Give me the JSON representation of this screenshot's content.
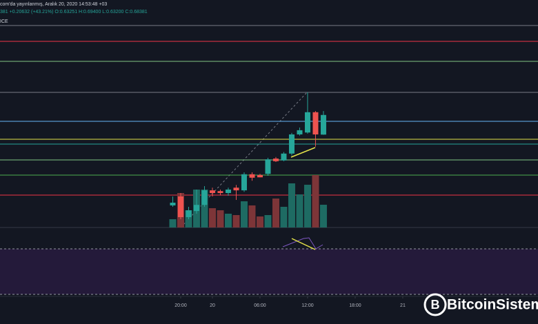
{
  "header": {
    "published": "com'da yayınlanmış, Aralık 20, 2020 14:53:48 +03",
    "quote": "381 +0.20632 (+43.21%) O:0.63251 H:0.69400 L:0.63200 C:0.68381",
    "source": "ICE"
  },
  "watermark": "BitcoinSistemi",
  "chart_data": {
    "type": "candlestick",
    "x": [
      "2020-12-19 19:00",
      "2020-12-19 20:00",
      "2020-12-19 21:00",
      "2020-12-19 22:00",
      "2020-12-19 23:00",
      "2020-12-20 00:00",
      "2020-12-20 01:00",
      "2020-12-20 02:00",
      "2020-12-20 03:00",
      "2020-12-20 04:00",
      "2020-12-20 05:00",
      "2020-12-20 06:00",
      "2020-12-20 07:00",
      "2020-12-20 08:00",
      "2020-12-20 09:00",
      "2020-12-20 10:00",
      "2020-12-20 11:00",
      "2020-12-20 12:00",
      "2020-12-20 13:00",
      "2020-12-20 14:00"
    ],
    "open": [
      0.4476,
      0.471,
      0.417,
      0.433,
      0.449,
      0.487,
      0.485,
      0.48,
      0.494,
      0.487,
      0.529,
      0.527,
      0.53,
      0.57,
      0.565,
      0.583,
      0.633,
      0.638,
      0.691,
      0.63251
    ],
    "high": [
      0.471,
      0.48,
      0.444,
      0.489,
      0.498,
      0.494,
      0.489,
      0.494,
      0.501,
      0.534,
      0.534,
      0.53,
      0.572,
      0.574,
      0.587,
      0.637,
      0.651,
      0.743,
      0.694,
      0.694
    ],
    "low": [
      0.444,
      0.4116,
      0.4116,
      0.426,
      0.444,
      0.471,
      0.474,
      0.473,
      0.462,
      0.483,
      0.512,
      0.521,
      0.525,
      0.561,
      0.563,
      0.578,
      0.63,
      0.635,
      0.601,
      0.632
    ],
    "close": [
      0.4548,
      0.417,
      0.435,
      0.449,
      0.487,
      0.48,
      0.48,
      0.489,
      0.487,
      0.529,
      0.52,
      0.521,
      0.568,
      0.563,
      0.583,
      0.633,
      0.644,
      0.691,
      0.633,
      0.68381
    ],
    "volume": [
      12,
      50,
      25,
      55,
      55,
      28,
      25,
      20,
      18,
      38,
      32,
      16,
      18,
      42,
      30,
      64,
      48,
      62,
      76,
      33
    ],
    "up_color": "#26a69a",
    "down_color": "#ef5350",
    "volume_up_color": "#1e6b63",
    "volume_down_color": "#7d3538",
    "ylim": [
      0.39,
      0.93
    ],
    "vlim": [
      0,
      100
    ],
    "xlim": [
      "2020-12-18 21:13",
      "2020-12-21 17:03"
    ],
    "xticks": [
      {
        "value": "2020-12-19 20:00",
        "label": "20:00"
      },
      {
        "value": "2020-12-20 00:00",
        "label": "20"
      },
      {
        "value": "2020-12-20 06:00",
        "label": "06:00"
      },
      {
        "value": "2020-12-20 12:00",
        "label": "12:00"
      },
      {
        "value": "2020-12-20 18:00",
        "label": "18:00"
      },
      {
        "value": "2020-12-21 00:00",
        "label": "21"
      }
    ],
    "levels": [
      {
        "value": 0.9174,
        "color": "#787b86"
      },
      {
        "value": 0.876,
        "color": "#f23645"
      },
      {
        "value": 0.8238,
        "color": "#81c784"
      },
      {
        "value": 0.7428,
        "color": "#787b86"
      },
      {
        "value": 0.6672,
        "color": "#64b5f6"
      },
      {
        "value": 0.6204,
        "color": "#e5e34a"
      },
      {
        "value": 0.6078,
        "color": "#26a69a"
      },
      {
        "value": 0.5664,
        "color": "#81c784"
      },
      {
        "value": 0.5268,
        "color": "#4caf50"
      },
      {
        "value": 0.4746,
        "color": "#f23645"
      }
    ]
  }
}
